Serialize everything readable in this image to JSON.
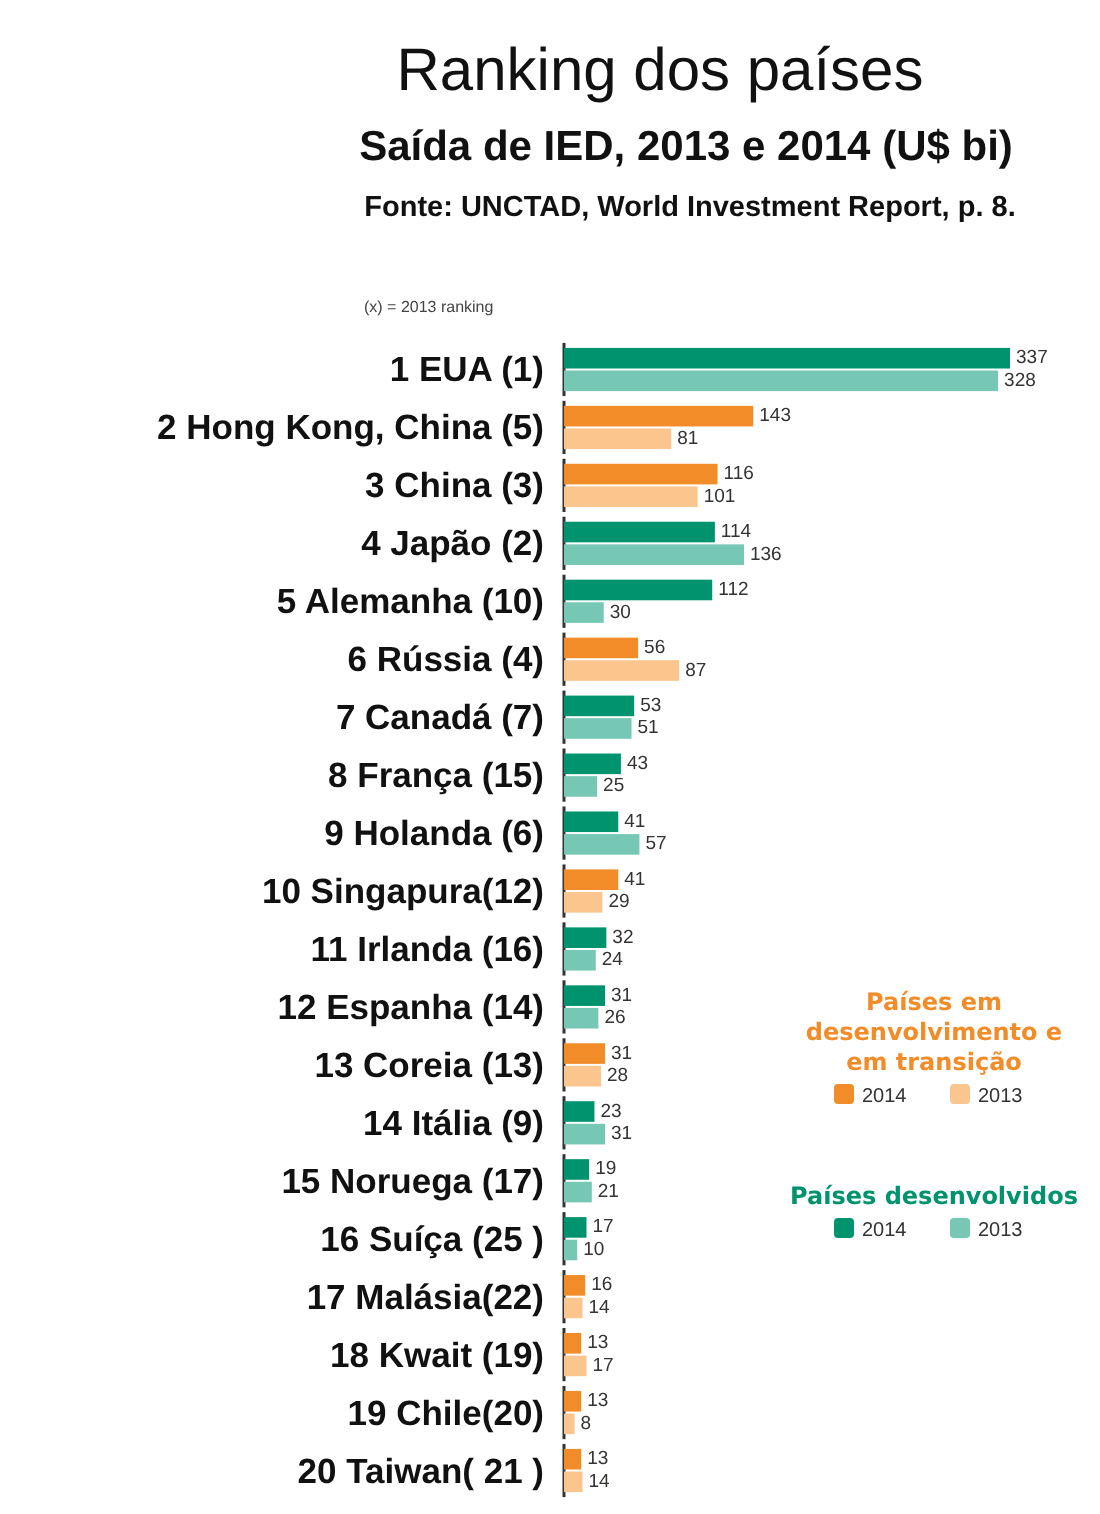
{
  "chart_data": {
    "type": "bar",
    "orientation": "horizontal",
    "title": "Ranking dos países",
    "subtitle": "Saída de IED, 2013 e 2014 (U$ bi)",
    "annotations": [
      "Fonte: UNCTAD, World Investment Report, p. 8.",
      "(x) = 2013 ranking",
      "Países em desenvolvimento e em transição",
      "Países desenvolvidos"
    ],
    "categories": [
      "1 EUA (1)",
      "2 Hong Kong, China (5)",
      "3 China (3)",
      "4 Japão (2)",
      "5 Alemanha (10)",
      "6 Rússia (4)",
      "7 Canadá (7)",
      "8 França (15)",
      "9 Holanda (6)",
      "10 Singapura(12)",
      "11 Irlanda (16)",
      "12 Espanha (14)",
      "13 Coreia (13)",
      "14 Itália (9)",
      "15 Noruega (17)",
      "16 Suíça (25 )",
      "17 Malásia(22)",
      "18 Kwait (19)",
      "19 Chile(20)",
      "20 Taiwan( 21 )"
    ],
    "series": [
      {
        "name": "2014",
        "color": "#f28c28",
        "values": [
          null,
          143,
          116,
          null,
          null,
          56,
          null,
          null,
          null,
          41,
          null,
          null,
          31,
          null,
          null,
          null,
          16,
          13,
          13,
          13
        ]
      },
      {
        "name": "2013",
        "color": "#fbc58e",
        "values": [
          null,
          81,
          101,
          null,
          null,
          87,
          null,
          null,
          null,
          29,
          null,
          null,
          28,
          null,
          null,
          null,
          14,
          17,
          8,
          14
        ]
      },
      {
        "name": "2014",
        "color": "#00936e",
        "values": [
          337,
          null,
          null,
          114,
          112,
          null,
          53,
          43,
          41,
          null,
          32,
          31,
          null,
          23,
          19,
          17,
          null,
          null,
          null,
          null
        ]
      },
      {
        "name": "2013",
        "color": "#76c7b4",
        "values": [
          328,
          null,
          null,
          136,
          30,
          null,
          51,
          25,
          57,
          null,
          24,
          26,
          null,
          31,
          21,
          10,
          null,
          null,
          null,
          null
        ]
      }
    ],
    "data_labels": true,
    "legend": "right"
  }
}
